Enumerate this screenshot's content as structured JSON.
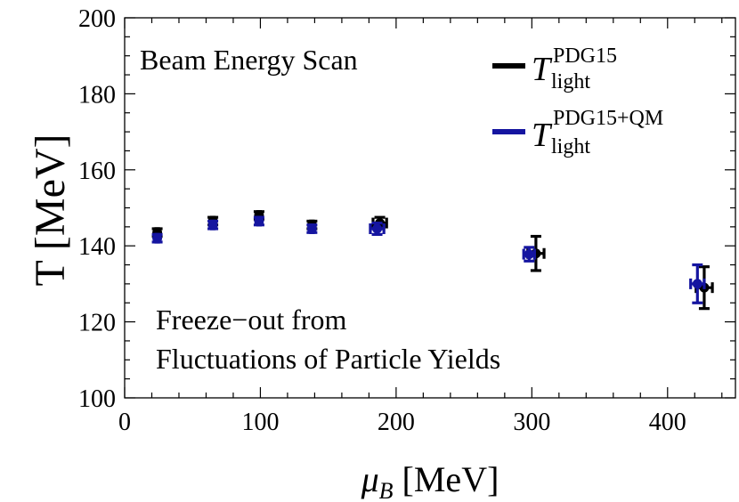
{
  "chart_data": {
    "type": "scatter",
    "title": "",
    "xlabel_symbol": "μ",
    "xlabel_sub": "B",
    "xlabel_unit": "[MeV]",
    "ylabel": "T [MeV]",
    "xlim": [
      0,
      450
    ],
    "ylim": [
      100,
      200
    ],
    "x_ticks": [
      0,
      100,
      200,
      300,
      400
    ],
    "y_ticks": [
      100,
      120,
      140,
      160,
      180,
      200
    ],
    "x_tick_labels": [
      "0",
      "100",
      "200",
      "300",
      "400"
    ],
    "y_tick_labels": [
      "100",
      "120",
      "140",
      "160",
      "180",
      "200"
    ],
    "annotations": {
      "top_left": "Beam Energy Scan",
      "bottom_line1": "Freeze−out from",
      "bottom_line2": "Fluctuations of Particle Yields"
    },
    "series": [
      {
        "name": "T_light^PDG15",
        "legend_main": "T",
        "legend_sup": "PDG15",
        "legend_sub": "light",
        "color": "#000000",
        "points": [
          {
            "x": 24,
            "y": 143.5,
            "xerr": 1,
            "yerr": 1
          },
          {
            "x": 65,
            "y": 146.5,
            "xerr": 1,
            "yerr": 1
          },
          {
            "x": 99,
            "y": 148.0,
            "xerr": 1,
            "yerr": 1
          },
          {
            "x": 138,
            "y": 145.5,
            "xerr": 1,
            "yerr": 1
          },
          {
            "x": 188,
            "y": 146.0,
            "xerr": 5,
            "yerr": 1.5
          },
          {
            "x": 303,
            "y": 138.0,
            "xerr": 6,
            "yerr": 4.5
          },
          {
            "x": 427,
            "y": 129.0,
            "xerr": 6,
            "yerr": 5.5
          }
        ]
      },
      {
        "name": "T_light^PDG15+QM",
        "legend_main": "T",
        "legend_sup": "PDG15+QM",
        "legend_sub": "light",
        "color": "#1515a0",
        "points": [
          {
            "x": 24,
            "y": 142.0,
            "xerr": 1,
            "yerr": 1
          },
          {
            "x": 65,
            "y": 145.5,
            "xerr": 1,
            "yerr": 1
          },
          {
            "x": 99,
            "y": 146.5,
            "xerr": 1,
            "yerr": 1
          },
          {
            "x": 138,
            "y": 144.5,
            "xerr": 1,
            "yerr": 1
          },
          {
            "x": 186,
            "y": 144.5,
            "xerr": 5,
            "yerr": 1.5
          },
          {
            "x": 298,
            "y": 137.8,
            "xerr": 4,
            "yerr": 1.8
          },
          {
            "x": 422,
            "y": 130.0,
            "xerr": 5,
            "yerr": 5
          }
        ]
      }
    ]
  }
}
